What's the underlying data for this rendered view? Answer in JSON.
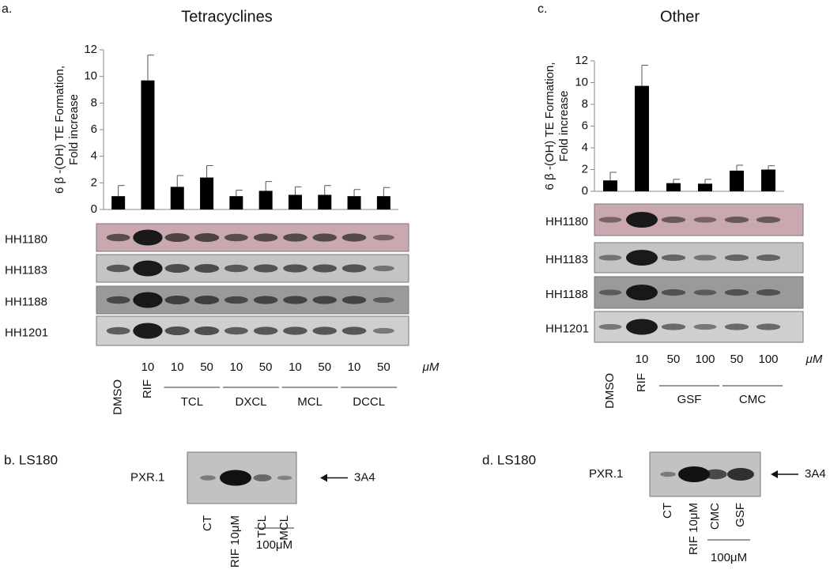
{
  "chart_data": [
    {
      "type": "bar",
      "panel": "a.",
      "title": "Tetracyclines",
      "ylabel": [
        "6 β -(OH) TE Formation,",
        "Fold increase"
      ],
      "categories": [
        "DMSO",
        "RIF",
        "TCL",
        null,
        "DXCL",
        null,
        "MCL",
        null,
        "DCCL",
        null
      ],
      "doses": [
        null,
        "10",
        "10",
        "50",
        "10",
        "50",
        "10",
        "50",
        "10",
        "50"
      ],
      "dose_unit": "μM",
      "values": [
        1.0,
        9.7,
        1.7,
        2.4,
        1.0,
        1.4,
        1.1,
        1.1,
        1.0,
        1.0
      ],
      "errors": [
        0.8,
        1.9,
        0.85,
        0.9,
        0.45,
        0.7,
        0.6,
        0.7,
        0.5,
        0.65
      ],
      "color": "#000000",
      "ylim": [
        0,
        12
      ],
      "yticks": [
        0,
        2,
        4,
        6,
        8,
        10,
        12
      ],
      "blot_rows": [
        "HH1180",
        "HH1183",
        "HH1188",
        "HH1201"
      ]
    },
    {
      "type": "bar",
      "panel": "c.",
      "title": "Other",
      "ylabel": [
        "6 β -(OH) TE Formation,",
        "Fold increase"
      ],
      "categories": [
        "DMSO",
        "RIF",
        "GSF",
        null,
        "CMC",
        null
      ],
      "doses": [
        null,
        "10",
        "50",
        "100",
        "50",
        "100"
      ],
      "dose_unit": "μM",
      "values": [
        1.0,
        9.7,
        0.75,
        0.7,
        1.9,
        2.0
      ],
      "errors": [
        0.75,
        1.9,
        0.35,
        0.4,
        0.5,
        0.35
      ],
      "color": "#000000",
      "ylim": [
        0,
        12
      ],
      "yticks": [
        0,
        2,
        4,
        6,
        8,
        10,
        12
      ],
      "blot_rows": [
        "HH1180",
        "HH1183",
        "HH1188",
        "HH1201"
      ]
    }
  ],
  "lower_panels": [
    {
      "label": "b. LS180",
      "blot_label": "PXR.1",
      "arrow_label": "3A4",
      "lanes": [
        "CT",
        "RIF 10μM",
        "TCL",
        "MCL"
      ],
      "dose_label": "100μM"
    },
    {
      "label": "d. LS180",
      "blot_label": "PXR.1",
      "arrow_label": "3A4",
      "lanes": [
        "CT",
        "RIF 10μM",
        "CMC",
        "GSF"
      ],
      "dose_label": "100μM"
    }
  ]
}
